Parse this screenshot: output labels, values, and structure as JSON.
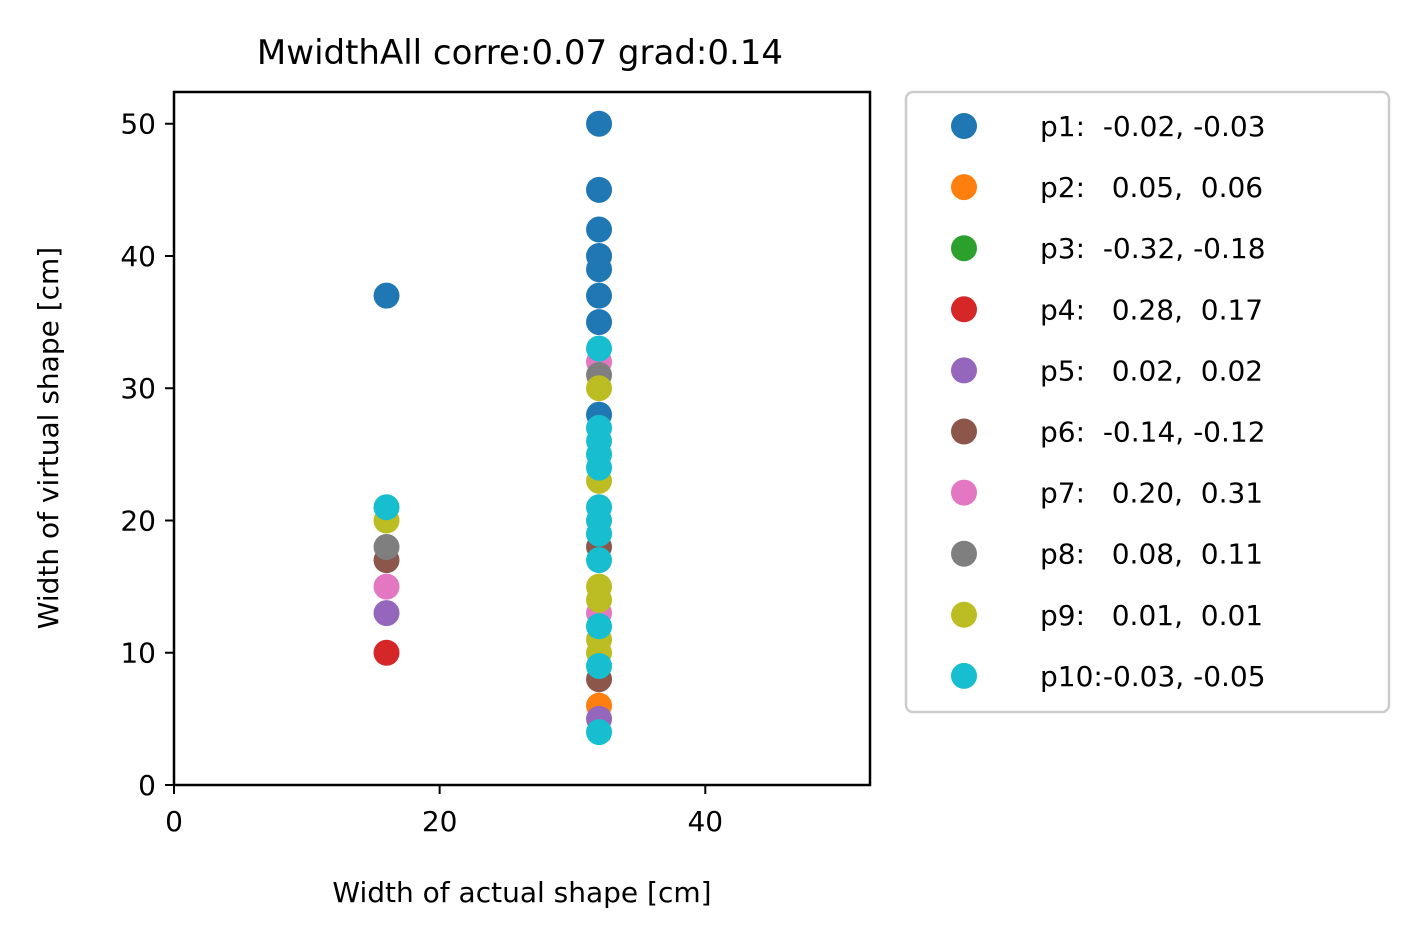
{
  "chart_data": {
    "type": "scatter",
    "title": "MwidthAll corre:0.07 grad:0.14",
    "xlabel": "Width of actual shape [cm]",
    "ylabel": "Width of virtual shape [cm]",
    "xlim": [
      0,
      52.4
    ],
    "ylim": [
      0,
      52.4
    ],
    "xticks": [
      0,
      20,
      40
    ],
    "yticks": [
      0,
      10,
      20,
      30,
      40,
      50
    ],
    "grid": false,
    "legend_position": "outside-right",
    "series": [
      {
        "name": "p1:  -0.02, -0.03",
        "color": "#1f77b4",
        "points": [
          [
            16,
            37
          ],
          [
            32,
            50
          ],
          [
            32,
            45
          ],
          [
            32,
            42
          ],
          [
            32,
            40
          ],
          [
            32,
            39
          ],
          [
            32,
            37
          ],
          [
            32,
            35
          ],
          [
            32,
            28
          ]
        ]
      },
      {
        "name": "p2:   0.05,  0.06",
        "color": "#ff7f0e",
        "points": [
          [
            32,
            6
          ]
        ]
      },
      {
        "name": "p3:  -0.32, -0.18",
        "color": "#2ca02c",
        "points": []
      },
      {
        "name": "p4:   0.28,  0.17",
        "color": "#d62728",
        "points": [
          [
            16,
            10
          ]
        ]
      },
      {
        "name": "p5:   0.02,  0.02",
        "color": "#9467bd",
        "points": [
          [
            16,
            13
          ],
          [
            32,
            5
          ]
        ]
      },
      {
        "name": "p6:  -0.14, -0.12",
        "color": "#8c564b",
        "points": [
          [
            16,
            17
          ],
          [
            32,
            8
          ],
          [
            32,
            18
          ]
        ]
      },
      {
        "name": "p7:   0.20,  0.31",
        "color": "#e377c2",
        "points": [
          [
            16,
            15
          ],
          [
            32,
            32
          ],
          [
            32,
            13
          ]
        ]
      },
      {
        "name": "p8:   0.08,  0.11",
        "color": "#7f7f7f",
        "points": [
          [
            16,
            18
          ],
          [
            32,
            31
          ]
        ]
      },
      {
        "name": "p9:   0.01,  0.01",
        "color": "#bcbd22",
        "points": [
          [
            16,
            20
          ],
          [
            32,
            30
          ],
          [
            32,
            23
          ],
          [
            32,
            15
          ],
          [
            32,
            14
          ],
          [
            32,
            11
          ],
          [
            32,
            10
          ]
        ]
      },
      {
        "name": "p10:-0.03, -0.05",
        "color": "#17becf",
        "points": [
          [
            16,
            21
          ],
          [
            32,
            33
          ],
          [
            32,
            27
          ],
          [
            32,
            26
          ],
          [
            32,
            25
          ],
          [
            32,
            24
          ],
          [
            32,
            21
          ],
          [
            32,
            20
          ],
          [
            32,
            19
          ],
          [
            32,
            17
          ],
          [
            32,
            12
          ],
          [
            32,
            9
          ],
          [
            32,
            4
          ]
        ]
      }
    ]
  }
}
